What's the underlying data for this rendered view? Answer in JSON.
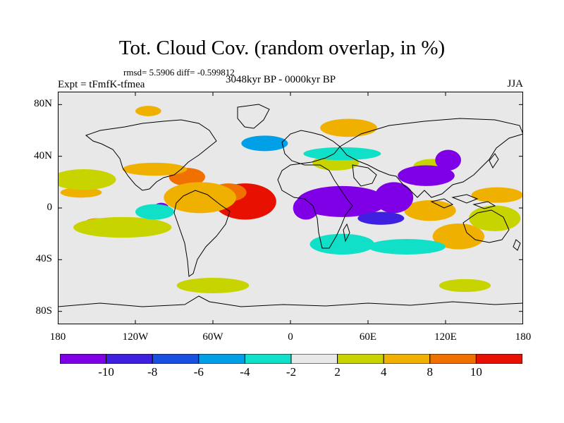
{
  "title": "Tot. Cloud Cov. (random overlap, in %)",
  "stats": "rmsd= 5.5906 diff= -0.599812",
  "experiment": "Expt = tFmfK-tfmea",
  "period": "3048kyr BP - 0000kyr BP",
  "season": "JJA",
  "map": {
    "projection": "cylindrical-equidistant",
    "lon_range": [
      -180,
      180
    ],
    "lat_range": [
      -90,
      90
    ],
    "lat_ticks": [
      {
        "value": 80,
        "label": "80N"
      },
      {
        "value": 40,
        "label": "40N"
      },
      {
        "value": 0,
        "label": "0"
      },
      {
        "value": -40,
        "label": "40S"
      },
      {
        "value": -80,
        "label": "80S"
      }
    ],
    "lon_ticks": [
      {
        "value": -180,
        "label": "180"
      },
      {
        "value": -120,
        "label": "120W"
      },
      {
        "value": -60,
        "label": "60W"
      },
      {
        "value": 0,
        "label": "0"
      },
      {
        "value": 60,
        "label": "60E"
      },
      {
        "value": 120,
        "label": "120E"
      },
      {
        "value": 180,
        "label": "180"
      }
    ],
    "background_color": "#e8e8e8",
    "coastline_color": "#000000",
    "anomaly_regions": [
      {
        "lon": -35,
        "lat": 5,
        "rlon": 24,
        "rlat": 14,
        "level": "gt10"
      },
      {
        "lon": -48,
        "lat": 12,
        "rlon": 14,
        "rlat": 7,
        "level": "8to10"
      },
      {
        "lon": -80,
        "lat": 24,
        "rlon": 14,
        "rlat": 7,
        "level": "8to10"
      },
      {
        "lon": -150,
        "lat": -12,
        "rlon": 10,
        "rlat": 4,
        "level": "8to10"
      },
      {
        "lon": -162,
        "lat": 12,
        "rlon": 16,
        "rlat": 4,
        "level": "4to8"
      },
      {
        "lon": -70,
        "lat": 8,
        "rlon": 28,
        "rlat": 12,
        "level": "4to8"
      },
      {
        "lon": -105,
        "lat": 30,
        "rlon": 25,
        "rlat": 5,
        "level": "4to8"
      },
      {
        "lon": -110,
        "lat": 75,
        "rlon": 10,
        "rlat": 4,
        "level": "4to8"
      },
      {
        "lon": 45,
        "lat": 62,
        "rlon": 22,
        "rlat": 7,
        "level": "4to8"
      },
      {
        "lon": 130,
        "lat": -22,
        "rlon": 20,
        "rlat": 10,
        "level": "4to8"
      },
      {
        "lon": 108,
        "lat": -2,
        "rlon": 20,
        "rlat": 8,
        "level": "4to8"
      },
      {
        "lon": 160,
        "lat": 10,
        "rlon": 20,
        "rlat": 6,
        "level": "4to8"
      },
      {
        "lon": -130,
        "lat": -15,
        "rlon": 38,
        "rlat": 8,
        "level": "2to4"
      },
      {
        "lon": -160,
        "lat": 22,
        "rlon": 25,
        "rlat": 8,
        "level": "2to4"
      },
      {
        "lon": 158,
        "lat": -8,
        "rlon": 20,
        "rlat": 10,
        "level": "2to4"
      },
      {
        "lon": -60,
        "lat": -60,
        "rlon": 28,
        "rlat": 6,
        "level": "2to4"
      },
      {
        "lon": 35,
        "lat": 35,
        "rlon": 18,
        "rlat": 6,
        "level": "2to4"
      },
      {
        "lon": 110,
        "lat": 32,
        "rlon": 15,
        "rlat": 6,
        "level": "2to4"
      },
      {
        "lon": 135,
        "lat": -60,
        "rlon": 20,
        "rlat": 5,
        "level": "2to4"
      },
      {
        "lon": 40,
        "lat": 5,
        "rlon": 35,
        "rlat": 12,
        "level": "lt-10"
      },
      {
        "lon": 12,
        "lat": 0,
        "rlon": 10,
        "rlat": 9,
        "level": "lt-10"
      },
      {
        "lon": 80,
        "lat": 8,
        "rlon": 15,
        "rlat": 12,
        "level": "lt-10"
      },
      {
        "lon": 105,
        "lat": 25,
        "rlon": 22,
        "rlat": 8,
        "level": "lt-10"
      },
      {
        "lon": 122,
        "lat": 37,
        "rlon": 10,
        "rlat": 8,
        "level": "lt-10"
      },
      {
        "lon": -100,
        "lat": 0,
        "rlon": 6,
        "rlat": 4,
        "level": "lt-10"
      },
      {
        "lon": 70,
        "lat": -8,
        "rlon": 18,
        "rlat": 5,
        "level": "-10to-8"
      },
      {
        "lon": -20,
        "lat": 50,
        "rlon": 18,
        "rlat": 6,
        "level": "-6to-4"
      },
      {
        "lon": 40,
        "lat": -28,
        "rlon": 25,
        "rlat": 8,
        "level": "-4to-2"
      },
      {
        "lon": 40,
        "lat": 42,
        "rlon": 30,
        "rlat": 5,
        "level": "-4to-2"
      },
      {
        "lon": -105,
        "lat": -3,
        "rlon": 15,
        "rlat": 6,
        "level": "-4to-2"
      },
      {
        "lon": 90,
        "lat": -30,
        "rlon": 30,
        "rlat": 6,
        "level": "-4to-2"
      }
    ]
  },
  "colorbar": {
    "bins": [
      {
        "key": "lt-10",
        "color": "#7f00e6"
      },
      {
        "key": "-10to-8",
        "color": "#4020e0"
      },
      {
        "key": "-8to-6",
        "color": "#1a50e0"
      },
      {
        "key": "-6to-4",
        "color": "#00a0e8"
      },
      {
        "key": "-4to-2",
        "color": "#10e0c8"
      },
      {
        "key": "-2to2",
        "color": "#e8e8e8"
      },
      {
        "key": "2to4",
        "color": "#c8d400"
      },
      {
        "key": "4to8",
        "color": "#f0b000"
      },
      {
        "key": "8to10",
        "color": "#f07000"
      },
      {
        "key": "gt10",
        "color": "#e81000"
      }
    ],
    "labels": [
      "-10",
      "-8",
      "-6",
      "-4",
      "-2",
      "2",
      "4",
      "8",
      "10"
    ]
  }
}
